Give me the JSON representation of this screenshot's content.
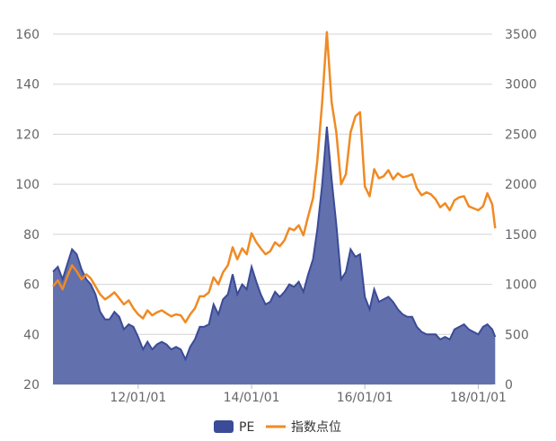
{
  "chart_data": {
    "type": "line",
    "title": "",
    "xlabel": "",
    "ylabel": "",
    "x_range": [
      "2010-07-01",
      "2018-04-01"
    ],
    "x_ticks": [
      "12/01/01",
      "14/01/01",
      "16/01/01",
      "18/01/01"
    ],
    "x_tick_dates": [
      "2012-01-01",
      "2014-01-01",
      "2016-01-01",
      "2018-01-01"
    ],
    "ylim_left": [
      20,
      160
    ],
    "yticks_left": [
      "20",
      "40",
      "60",
      "80",
      "100",
      "120",
      "140",
      "160"
    ],
    "ylim_right": [
      0,
      3500
    ],
    "yticks_right": [
      "0",
      "500",
      "1000",
      "1500",
      "2000",
      "2500",
      "3000",
      "3500"
    ],
    "grid": true,
    "legend_position": "bottom-center",
    "series": [
      {
        "name": "PE",
        "kind": "area",
        "axis": "left",
        "color": "#3b4b97",
        "fill": "#6270ad",
        "points": [
          [
            "2010-07-01",
            65
          ],
          [
            "2010-08-01",
            67
          ],
          [
            "2010-09-01",
            62
          ],
          [
            "2010-10-01",
            68
          ],
          [
            "2010-11-01",
            74
          ],
          [
            "2010-12-01",
            72
          ],
          [
            "2011-01-01",
            66
          ],
          [
            "2011-02-01",
            62
          ],
          [
            "2011-03-01",
            60
          ],
          [
            "2011-04-01",
            56
          ],
          [
            "2011-05-01",
            49
          ],
          [
            "2011-06-01",
            46
          ],
          [
            "2011-07-01",
            46
          ],
          [
            "2011-08-01",
            49
          ],
          [
            "2011-09-01",
            47
          ],
          [
            "2011-10-01",
            42
          ],
          [
            "2011-11-01",
            44
          ],
          [
            "2011-12-01",
            43
          ],
          [
            "2012-01-01",
            39
          ],
          [
            "2012-02-01",
            34
          ],
          [
            "2012-03-01",
            37
          ],
          [
            "2012-04-01",
            34
          ],
          [
            "2012-05-01",
            36
          ],
          [
            "2012-06-01",
            37
          ],
          [
            "2012-07-01",
            36
          ],
          [
            "2012-08-01",
            34
          ],
          [
            "2012-09-01",
            35
          ],
          [
            "2012-10-01",
            34
          ],
          [
            "2012-11-01",
            30
          ],
          [
            "2012-12-01",
            35
          ],
          [
            "2013-01-01",
            38
          ],
          [
            "2013-02-01",
            43
          ],
          [
            "2013-03-01",
            43
          ],
          [
            "2013-04-01",
            44
          ],
          [
            "2013-05-01",
            52
          ],
          [
            "2013-06-01",
            48
          ],
          [
            "2013-07-01",
            54
          ],
          [
            "2013-08-01",
            56
          ],
          [
            "2013-09-01",
            64
          ],
          [
            "2013-10-01",
            56
          ],
          [
            "2013-11-01",
            60
          ],
          [
            "2013-12-01",
            58
          ],
          [
            "2014-01-01",
            67
          ],
          [
            "2014-02-01",
            61
          ],
          [
            "2014-03-01",
            56
          ],
          [
            "2014-04-01",
            52
          ],
          [
            "2014-05-01",
            53
          ],
          [
            "2014-06-01",
            57
          ],
          [
            "2014-07-01",
            55
          ],
          [
            "2014-08-01",
            57
          ],
          [
            "2014-09-01",
            60
          ],
          [
            "2014-10-01",
            59
          ],
          [
            "2014-11-01",
            61
          ],
          [
            "2014-12-01",
            57
          ],
          [
            "2015-01-01",
            64
          ],
          [
            "2015-02-01",
            70
          ],
          [
            "2015-03-01",
            82
          ],
          [
            "2015-04-01",
            100
          ],
          [
            "2015-05-01",
            123
          ],
          [
            "2015-06-01",
            102
          ],
          [
            "2015-07-01",
            84
          ],
          [
            "2015-08-01",
            62
          ],
          [
            "2015-09-01",
            65
          ],
          [
            "2015-10-01",
            74
          ],
          [
            "2015-11-01",
            71
          ],
          [
            "2015-12-01",
            72
          ],
          [
            "2016-01-01",
            55
          ],
          [
            "2016-02-01",
            50
          ],
          [
            "2016-03-01",
            58
          ],
          [
            "2016-04-01",
            53
          ],
          [
            "2016-05-01",
            54
          ],
          [
            "2016-06-01",
            55
          ],
          [
            "2016-07-01",
            53
          ],
          [
            "2016-08-01",
            50
          ],
          [
            "2016-09-01",
            48
          ],
          [
            "2016-10-01",
            47
          ],
          [
            "2016-11-01",
            47
          ],
          [
            "2016-12-01",
            43
          ],
          [
            "2017-01-01",
            41
          ],
          [
            "2017-02-01",
            40
          ],
          [
            "2017-03-01",
            40
          ],
          [
            "2017-04-01",
            40
          ],
          [
            "2017-05-01",
            38
          ],
          [
            "2017-06-01",
            39
          ],
          [
            "2017-07-01",
            38
          ],
          [
            "2017-08-01",
            42
          ],
          [
            "2017-09-01",
            43
          ],
          [
            "2017-10-01",
            44
          ],
          [
            "2017-11-01",
            42
          ],
          [
            "2017-12-01",
            41
          ],
          [
            "2018-01-01",
            40
          ],
          [
            "2018-02-01",
            43
          ],
          [
            "2018-03-01",
            44
          ],
          [
            "2018-04-01",
            42
          ],
          [
            "2018-04-20",
            39
          ]
        ]
      },
      {
        "name": "指数点位",
        "kind": "line",
        "axis": "right",
        "color": "#f08a24",
        "points": [
          [
            "2010-07-01",
            980
          ],
          [
            "2010-08-01",
            1040
          ],
          [
            "2010-09-01",
            950
          ],
          [
            "2010-10-01",
            1080
          ],
          [
            "2010-11-01",
            1190
          ],
          [
            "2010-12-01",
            1130
          ],
          [
            "2011-01-01",
            1050
          ],
          [
            "2011-02-01",
            1100
          ],
          [
            "2011-03-01",
            1060
          ],
          [
            "2011-04-01",
            980
          ],
          [
            "2011-05-01",
            900
          ],
          [
            "2011-06-01",
            850
          ],
          [
            "2011-07-01",
            880
          ],
          [
            "2011-08-01",
            920
          ],
          [
            "2011-09-01",
            860
          ],
          [
            "2011-10-01",
            800
          ],
          [
            "2011-11-01",
            840
          ],
          [
            "2011-12-01",
            760
          ],
          [
            "2012-01-01",
            700
          ],
          [
            "2012-02-01",
            660
          ],
          [
            "2012-03-01",
            740
          ],
          [
            "2012-04-01",
            690
          ],
          [
            "2012-05-01",
            720
          ],
          [
            "2012-06-01",
            740
          ],
          [
            "2012-07-01",
            710
          ],
          [
            "2012-08-01",
            680
          ],
          [
            "2012-09-01",
            700
          ],
          [
            "2012-10-01",
            690
          ],
          [
            "2012-11-01",
            620
          ],
          [
            "2012-12-01",
            700
          ],
          [
            "2013-01-01",
            760
          ],
          [
            "2013-02-01",
            880
          ],
          [
            "2013-03-01",
            880
          ],
          [
            "2013-04-01",
            920
          ],
          [
            "2013-05-01",
            1070
          ],
          [
            "2013-06-01",
            1000
          ],
          [
            "2013-07-01",
            1120
          ],
          [
            "2013-08-01",
            1190
          ],
          [
            "2013-09-01",
            1370
          ],
          [
            "2013-10-01",
            1250
          ],
          [
            "2013-11-01",
            1360
          ],
          [
            "2013-12-01",
            1300
          ],
          [
            "2014-01-01",
            1510
          ],
          [
            "2014-02-01",
            1420
          ],
          [
            "2014-03-01",
            1360
          ],
          [
            "2014-04-01",
            1300
          ],
          [
            "2014-05-01",
            1330
          ],
          [
            "2014-06-01",
            1420
          ],
          [
            "2014-07-01",
            1380
          ],
          [
            "2014-08-01",
            1440
          ],
          [
            "2014-09-01",
            1560
          ],
          [
            "2014-10-01",
            1540
          ],
          [
            "2014-11-01",
            1590
          ],
          [
            "2014-12-01",
            1490
          ],
          [
            "2015-01-01",
            1680
          ],
          [
            "2015-02-01",
            1860
          ],
          [
            "2015-03-01",
            2240
          ],
          [
            "2015-04-01",
            2820
          ],
          [
            "2015-05-01",
            3520
          ],
          [
            "2015-06-01",
            2820
          ],
          [
            "2015-07-01",
            2520
          ],
          [
            "2015-08-01",
            2000
          ],
          [
            "2015-09-01",
            2100
          ],
          [
            "2015-10-01",
            2520
          ],
          [
            "2015-11-01",
            2680
          ],
          [
            "2015-12-01",
            2720
          ],
          [
            "2016-01-01",
            1980
          ],
          [
            "2016-02-01",
            1880
          ],
          [
            "2016-03-01",
            2150
          ],
          [
            "2016-04-01",
            2060
          ],
          [
            "2016-05-01",
            2080
          ],
          [
            "2016-06-01",
            2140
          ],
          [
            "2016-07-01",
            2050
          ],
          [
            "2016-08-01",
            2110
          ],
          [
            "2016-09-01",
            2070
          ],
          [
            "2016-10-01",
            2080
          ],
          [
            "2016-11-01",
            2100
          ],
          [
            "2016-12-01",
            1960
          ],
          [
            "2017-01-01",
            1890
          ],
          [
            "2017-02-01",
            1920
          ],
          [
            "2017-03-01",
            1900
          ],
          [
            "2017-04-01",
            1850
          ],
          [
            "2017-05-01",
            1770
          ],
          [
            "2017-06-01",
            1810
          ],
          [
            "2017-07-01",
            1740
          ],
          [
            "2017-08-01",
            1840
          ],
          [
            "2017-09-01",
            1870
          ],
          [
            "2017-10-01",
            1880
          ],
          [
            "2017-11-01",
            1780
          ],
          [
            "2017-12-01",
            1760
          ],
          [
            "2018-01-01",
            1740
          ],
          [
            "2018-02-01",
            1780
          ],
          [
            "2018-03-01",
            1910
          ],
          [
            "2018-04-01",
            1800
          ],
          [
            "2018-04-20",
            1560
          ]
        ]
      }
    ]
  }
}
